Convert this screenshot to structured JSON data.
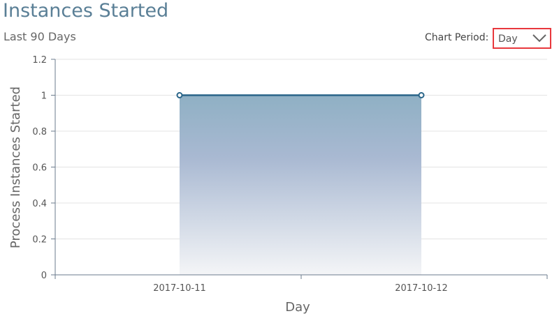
{
  "header": {
    "title": "Instances Started",
    "subtitle": "Last 90 Days"
  },
  "controls": {
    "period_label": "Chart Period:",
    "period_value": "Day",
    "icon": "chevron-down-icon",
    "highlight_color": "#e8383d"
  },
  "chart_data": {
    "type": "area",
    "categories": [
      "2017-10-11",
      "2017-10-12"
    ],
    "values": [
      1,
      1
    ],
    "xlabel": "Day",
    "ylabel": "Process Instances Started",
    "ylim": [
      0,
      1.2
    ],
    "yticks": [
      "0",
      "0.2",
      "0.4",
      "0.6",
      "0.8",
      "1",
      "1.2"
    ],
    "grid": true,
    "line_color": "#2a6589",
    "fill_color": "#8fb0c4"
  }
}
